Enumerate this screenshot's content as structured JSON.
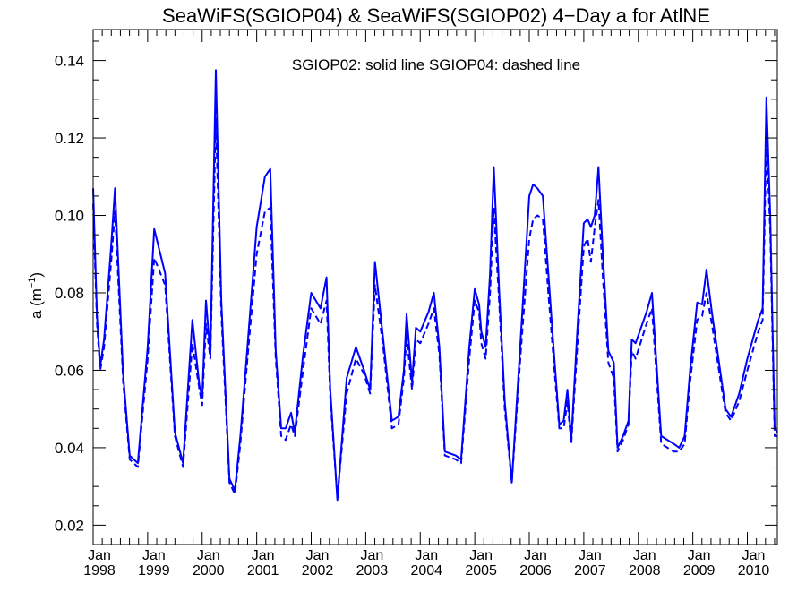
{
  "chart_data": {
    "type": "line",
    "title": "SeaWiFS(SGIOP04) & SeaWiFS(SGIOP02) 4−Day a for AtlNE",
    "annotation": "SGIOP02: solid line   SGIOP04: dashed line",
    "ylabel": "a (m⁻¹)",
    "xlim": [
      1998.0,
      2010.55
    ],
    "ylim": [
      0.015,
      0.148
    ],
    "grid": false,
    "y_ticks": [
      0.02,
      0.04,
      0.06,
      0.08,
      0.1,
      0.12,
      0.14
    ],
    "y_tick_labels": [
      "0.02",
      "0.04",
      "0.06",
      "0.08",
      "0.10",
      "0.12",
      "0.14"
    ],
    "x_ticks": [
      {
        "x": 1998,
        "month": "Jan",
        "year": "1998"
      },
      {
        "x": 1999,
        "month": "Jan",
        "year": "1999"
      },
      {
        "x": 2000,
        "month": "Jan",
        "year": "2000"
      },
      {
        "x": 2001,
        "month": "Jan",
        "year": "2001"
      },
      {
        "x": 2002,
        "month": "Jan",
        "year": "2002"
      },
      {
        "x": 2003,
        "month": "Jan",
        "year": "2003"
      },
      {
        "x": 2004,
        "month": "Jan",
        "year": "2004"
      },
      {
        "x": 2005,
        "month": "Jan",
        "year": "2005"
      },
      {
        "x": 2006,
        "month": "Jan",
        "year": "2006"
      },
      {
        "x": 2007,
        "month": "Jan",
        "year": "2007"
      },
      {
        "x": 2008,
        "month": "Jan",
        "year": "2008"
      },
      {
        "x": 2009,
        "month": "Jan",
        "year": "2009"
      },
      {
        "x": 2010,
        "month": "Jan",
        "year": "2010"
      }
    ],
    "color": "#0000ff",
    "series": [
      {
        "name": "SGIOP02",
        "style": "solid",
        "points": [
          [
            1998.0,
            0.107
          ],
          [
            1998.07,
            0.074
          ],
          [
            1998.13,
            0.061
          ],
          [
            1998.2,
            0.068
          ],
          [
            1998.33,
            0.092
          ],
          [
            1998.4,
            0.107
          ],
          [
            1998.55,
            0.059
          ],
          [
            1998.67,
            0.038
          ],
          [
            1998.82,
            0.036
          ],
          [
            1999.0,
            0.066
          ],
          [
            1999.12,
            0.0965
          ],
          [
            1999.32,
            0.085
          ],
          [
            1999.5,
            0.044
          ],
          [
            1999.65,
            0.036
          ],
          [
            1999.82,
            0.073
          ],
          [
            1999.95,
            0.056
          ],
          [
            2000.0,
            0.053
          ],
          [
            2000.07,
            0.078
          ],
          [
            2000.15,
            0.064
          ],
          [
            2000.25,
            0.1375
          ],
          [
            2000.35,
            0.078
          ],
          [
            2000.5,
            0.032
          ],
          [
            2000.6,
            0.029
          ],
          [
            2000.7,
            0.043
          ],
          [
            2000.83,
            0.066
          ],
          [
            2001.0,
            0.097
          ],
          [
            2001.15,
            0.11
          ],
          [
            2001.25,
            0.112
          ],
          [
            2001.35,
            0.065
          ],
          [
            2001.45,
            0.045
          ],
          [
            2001.53,
            0.045
          ],
          [
            2001.63,
            0.049
          ],
          [
            2001.7,
            0.044
          ],
          [
            2001.85,
            0.064
          ],
          [
            2002.0,
            0.08
          ],
          [
            2002.17,
            0.076
          ],
          [
            2002.28,
            0.084
          ],
          [
            2002.35,
            0.055
          ],
          [
            2002.48,
            0.0265
          ],
          [
            2002.65,
            0.058
          ],
          [
            2002.82,
            0.066
          ],
          [
            2002.97,
            0.06
          ],
          [
            2003.08,
            0.055
          ],
          [
            2003.17,
            0.088
          ],
          [
            2003.32,
            0.068
          ],
          [
            2003.48,
            0.047
          ],
          [
            2003.6,
            0.048
          ],
          [
            2003.7,
            0.06
          ],
          [
            2003.75,
            0.0745
          ],
          [
            2003.85,
            0.057
          ],
          [
            2003.92,
            0.071
          ],
          [
            2004.0,
            0.07
          ],
          [
            2004.15,
            0.075
          ],
          [
            2004.25,
            0.08
          ],
          [
            2004.35,
            0.066
          ],
          [
            2004.45,
            0.039
          ],
          [
            2004.65,
            0.038
          ],
          [
            2004.75,
            0.037
          ],
          [
            2004.9,
            0.066
          ],
          [
            2005.0,
            0.081
          ],
          [
            2005.08,
            0.077
          ],
          [
            2005.12,
            0.07
          ],
          [
            2005.2,
            0.066
          ],
          [
            2005.28,
            0.085
          ],
          [
            2005.35,
            0.1125
          ],
          [
            2005.45,
            0.08
          ],
          [
            2005.55,
            0.052
          ],
          [
            2005.68,
            0.031
          ],
          [
            2005.85,
            0.07
          ],
          [
            2006.0,
            0.105
          ],
          [
            2006.07,
            0.108
          ],
          [
            2006.15,
            0.107
          ],
          [
            2006.25,
            0.105
          ],
          [
            2006.35,
            0.085
          ],
          [
            2006.45,
            0.065
          ],
          [
            2006.55,
            0.046
          ],
          [
            2006.63,
            0.047
          ],
          [
            2006.7,
            0.055
          ],
          [
            2006.77,
            0.042
          ],
          [
            2006.88,
            0.07
          ],
          [
            2007.0,
            0.098
          ],
          [
            2007.07,
            0.099
          ],
          [
            2007.13,
            0.097
          ],
          [
            2007.2,
            0.1
          ],
          [
            2007.27,
            0.1125
          ],
          [
            2007.35,
            0.09
          ],
          [
            2007.45,
            0.065
          ],
          [
            2007.55,
            0.062
          ],
          [
            2007.62,
            0.04
          ],
          [
            2007.72,
            0.043
          ],
          [
            2007.82,
            0.047
          ],
          [
            2007.88,
            0.068
          ],
          [
            2007.95,
            0.067
          ],
          [
            2008.15,
            0.075
          ],
          [
            2008.25,
            0.08
          ],
          [
            2008.42,
            0.043
          ],
          [
            2008.65,
            0.041
          ],
          [
            2008.75,
            0.04
          ],
          [
            2008.85,
            0.043
          ],
          [
            2008.95,
            0.06
          ],
          [
            2009.08,
            0.0775
          ],
          [
            2009.17,
            0.077
          ],
          [
            2009.25,
            0.086
          ],
          [
            2009.35,
            0.075
          ],
          [
            2009.5,
            0.06
          ],
          [
            2009.6,
            0.05
          ],
          [
            2009.7,
            0.048
          ],
          [
            2009.85,
            0.054
          ],
          [
            2010.0,
            0.063
          ],
          [
            2010.2,
            0.073
          ],
          [
            2010.28,
            0.076
          ],
          [
            2010.35,
            0.1305
          ],
          [
            2010.42,
            0.1
          ],
          [
            2010.5,
            0.045
          ],
          [
            2010.55,
            0.044
          ]
        ]
      },
      {
        "name": "SGIOP04",
        "style": "dashed",
        "points": [
          [
            1998.0,
            0.103
          ],
          [
            1998.07,
            0.072
          ],
          [
            1998.13,
            0.06
          ],
          [
            1998.2,
            0.066
          ],
          [
            1998.33,
            0.088
          ],
          [
            1998.4,
            0.101
          ],
          [
            1998.55,
            0.057
          ],
          [
            1998.67,
            0.037
          ],
          [
            1998.82,
            0.035
          ],
          [
            1999.0,
            0.063
          ],
          [
            1999.12,
            0.089
          ],
          [
            1999.32,
            0.082
          ],
          [
            1999.5,
            0.043
          ],
          [
            1999.65,
            0.035
          ],
          [
            1999.82,
            0.067
          ],
          [
            1999.95,
            0.055
          ],
          [
            2000.0,
            0.051
          ],
          [
            2000.07,
            0.072
          ],
          [
            2000.15,
            0.063
          ],
          [
            2000.25,
            0.125
          ],
          [
            2000.35,
            0.075
          ],
          [
            2000.5,
            0.031
          ],
          [
            2000.6,
            0.028
          ],
          [
            2000.7,
            0.041
          ],
          [
            2000.83,
            0.063
          ],
          [
            2001.0,
            0.09
          ],
          [
            2001.15,
            0.101
          ],
          [
            2001.25,
            0.102
          ],
          [
            2001.35,
            0.063
          ],
          [
            2001.45,
            0.043
          ],
          [
            2001.53,
            0.042
          ],
          [
            2001.63,
            0.046
          ],
          [
            2001.7,
            0.043
          ],
          [
            2001.85,
            0.06
          ],
          [
            2002.0,
            0.076
          ],
          [
            2002.17,
            0.072
          ],
          [
            2002.28,
            0.078
          ],
          [
            2002.35,
            0.053
          ],
          [
            2002.48,
            0.027
          ],
          [
            2002.65,
            0.054
          ],
          [
            2002.82,
            0.063
          ],
          [
            2002.97,
            0.059
          ],
          [
            2003.08,
            0.054
          ],
          [
            2003.17,
            0.082
          ],
          [
            2003.32,
            0.066
          ],
          [
            2003.48,
            0.045
          ],
          [
            2003.6,
            0.046
          ],
          [
            2003.7,
            0.058
          ],
          [
            2003.75,
            0.069
          ],
          [
            2003.85,
            0.055
          ],
          [
            2003.92,
            0.068
          ],
          [
            2004.0,
            0.067
          ],
          [
            2004.15,
            0.072
          ],
          [
            2004.25,
            0.076
          ],
          [
            2004.35,
            0.064
          ],
          [
            2004.45,
            0.038
          ],
          [
            2004.65,
            0.037
          ],
          [
            2004.75,
            0.036
          ],
          [
            2004.9,
            0.063
          ],
          [
            2005.0,
            0.078
          ],
          [
            2005.08,
            0.075
          ],
          [
            2005.12,
            0.067
          ],
          [
            2005.2,
            0.063
          ],
          [
            2005.28,
            0.08
          ],
          [
            2005.35,
            0.102
          ],
          [
            2005.45,
            0.077
          ],
          [
            2005.55,
            0.05
          ],
          [
            2005.68,
            0.031
          ],
          [
            2005.85,
            0.066
          ],
          [
            2006.0,
            0.094
          ],
          [
            2006.07,
            0.099
          ],
          [
            2006.15,
            0.1
          ],
          [
            2006.25,
            0.099
          ],
          [
            2006.35,
            0.08
          ],
          [
            2006.45,
            0.062
          ],
          [
            2006.55,
            0.045
          ],
          [
            2006.63,
            0.045
          ],
          [
            2006.7,
            0.052
          ],
          [
            2006.77,
            0.041
          ],
          [
            2006.88,
            0.066
          ],
          [
            2007.0,
            0.092
          ],
          [
            2007.07,
            0.094
          ],
          [
            2007.13,
            0.088
          ],
          [
            2007.2,
            0.097
          ],
          [
            2007.27,
            0.104
          ],
          [
            2007.35,
            0.084
          ],
          [
            2007.45,
            0.062
          ],
          [
            2007.55,
            0.058
          ],
          [
            2007.62,
            0.039
          ],
          [
            2007.72,
            0.042
          ],
          [
            2007.82,
            0.046
          ],
          [
            2007.88,
            0.065
          ],
          [
            2007.95,
            0.063
          ],
          [
            2008.15,
            0.072
          ],
          [
            2008.25,
            0.076
          ],
          [
            2008.42,
            0.041
          ],
          [
            2008.65,
            0.039
          ],
          [
            2008.75,
            0.039
          ],
          [
            2008.85,
            0.041
          ],
          [
            2008.95,
            0.057
          ],
          [
            2009.08,
            0.073
          ],
          [
            2009.17,
            0.074
          ],
          [
            2009.25,
            0.08
          ],
          [
            2009.35,
            0.072
          ],
          [
            2009.5,
            0.058
          ],
          [
            2009.6,
            0.049
          ],
          [
            2009.7,
            0.047
          ],
          [
            2009.85,
            0.052
          ],
          [
            2010.0,
            0.06
          ],
          [
            2010.2,
            0.07
          ],
          [
            2010.28,
            0.073
          ],
          [
            2010.35,
            0.12
          ],
          [
            2010.42,
            0.096
          ],
          [
            2010.5,
            0.043
          ],
          [
            2010.55,
            0.043
          ]
        ]
      }
    ]
  }
}
